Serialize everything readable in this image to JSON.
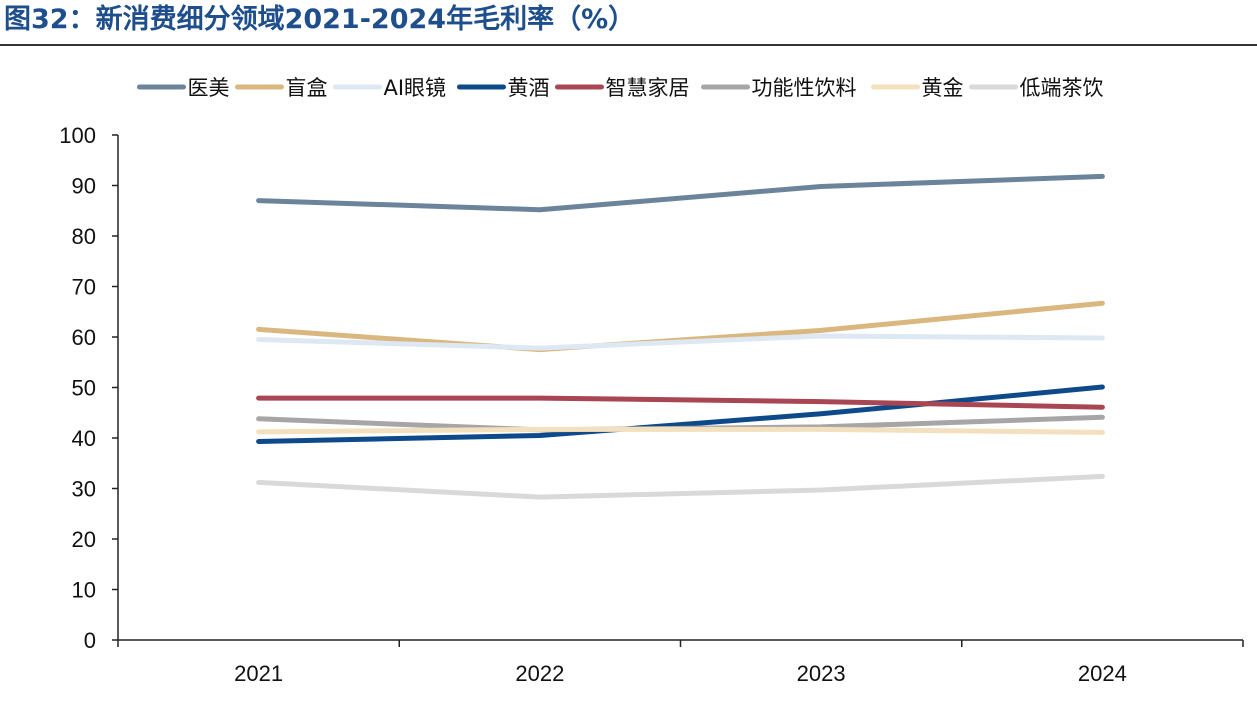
{
  "header": {
    "title": "图32：新消费细分领域2021-2024年毛利率（%）"
  },
  "chart_data": {
    "type": "line",
    "title": "图32：新消费细分领域2021-2024年毛利率（%）",
    "categories": [
      "2021",
      "2022",
      "2023",
      "2024"
    ],
    "ylim": [
      0,
      100
    ],
    "yticks": [
      "0",
      "10",
      "20",
      "30",
      "40",
      "50",
      "60",
      "70",
      "80",
      "90",
      "100"
    ],
    "grid": false,
    "legend_position": "top",
    "series": [
      {
        "name": "医美",
        "color": "#6b849b",
        "values": [
          87,
          85.2,
          89.8,
          91.8
        ]
      },
      {
        "name": "盲盒",
        "color": "#d9b77e",
        "values": [
          61.5,
          57.5,
          61.3,
          66.7
        ]
      },
      {
        "name": "AI眼镜",
        "color": "#dde8f3",
        "values": [
          59.5,
          57.8,
          60.2,
          59.8
        ]
      },
      {
        "name": "黄酒",
        "color": "#0e4a8a",
        "values": [
          39.3,
          40.5,
          44.8,
          50.1
        ]
      },
      {
        "name": "智慧家居",
        "color": "#a94653",
        "values": [
          47.9,
          47.9,
          47.2,
          46.1
        ]
      },
      {
        "name": "功能性饮料",
        "color": "#a6a6a6",
        "values": [
          43.8,
          41.6,
          42.2,
          44.1
        ]
      },
      {
        "name": "黄金",
        "color": "#f2e0be",
        "values": [
          41.2,
          41.7,
          41.7,
          41.1
        ]
      },
      {
        "name": "低端茶饮",
        "color": "#d9d9d9",
        "values": [
          31.2,
          28.3,
          29.7,
          32.4
        ]
      }
    ]
  }
}
